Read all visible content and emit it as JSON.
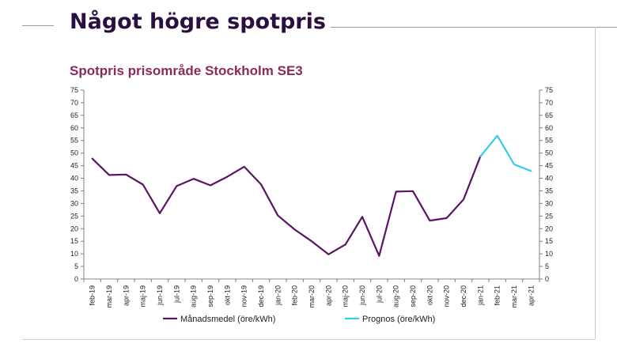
{
  "slide": {
    "title": "Något högre spotpris"
  },
  "colors": {
    "title": "#2a0f3f",
    "chart_title": "#8b2a5a",
    "series_main": "#5b1464",
    "series_forecast": "#33ccf0"
  },
  "chart_data": {
    "type": "line",
    "title": "Spotpris prisområde Stockholm SE3",
    "xlabel": "",
    "ylabel": "",
    "ylim": [
      0,
      75
    ],
    "yticks": [
      0,
      5,
      10,
      15,
      20,
      25,
      30,
      35,
      40,
      45,
      50,
      55,
      60,
      65,
      70,
      75
    ],
    "grid": false,
    "legend": "bottom",
    "categories": [
      "feb-19",
      "mar-19",
      "apr-19",
      "maj-19",
      "jun-19",
      "jul-19",
      "aug-19",
      "sep-19",
      "okt-19",
      "nov-19",
      "dec-19",
      "jan-20",
      "feb-20",
      "mar-20",
      "apr-20",
      "maj-20",
      "jun-20",
      "jul-20",
      "aug-20",
      "sep-20",
      "okt-20",
      "nov-20",
      "dec-20",
      "jan-21",
      "feb-21",
      "mar-21",
      "apr-21"
    ],
    "series": [
      {
        "name": "Månadsmedel (öre/kWh)",
        "color": "#5b1464",
        "values": [
          47.8,
          41.3,
          41.5,
          37.5,
          26.1,
          36.9,
          39.8,
          37.2,
          40.6,
          44.6,
          37.6,
          25.2,
          19.6,
          15.0,
          9.8,
          13.7,
          24.7,
          9.2,
          34.7,
          34.9,
          23.2,
          24.2,
          31.6,
          48.7,
          null,
          null,
          null
        ]
      },
      {
        "name": "Prognos (öre/kWh)",
        "color": "#33ccf0",
        "values": [
          null,
          null,
          null,
          null,
          null,
          null,
          null,
          null,
          null,
          null,
          null,
          null,
          null,
          null,
          null,
          null,
          null,
          null,
          null,
          null,
          null,
          null,
          null,
          48.7,
          56.9,
          45.5,
          42.9
        ]
      }
    ]
  }
}
